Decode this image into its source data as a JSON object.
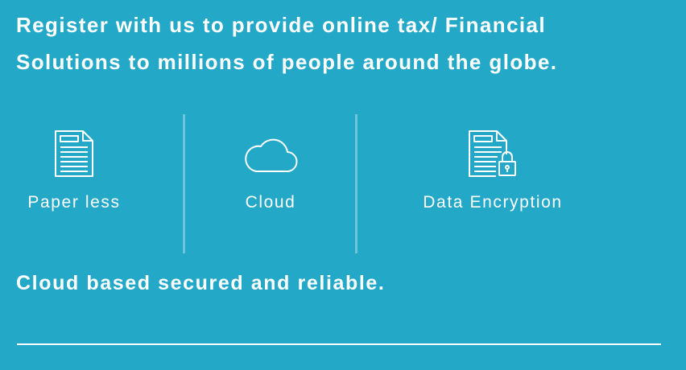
{
  "heading": {
    "line1": "Register with us to provide online tax/ Financial",
    "line2": "Solutions to millions of people around the globe."
  },
  "features": [
    {
      "label": "Paper less",
      "icon": "document-icon"
    },
    {
      "label": "Cloud",
      "icon": "cloud-icon"
    },
    {
      "label": "Data Encryption",
      "icon": "encrypted-document-icon"
    }
  ],
  "tagline": "Cloud based secured and reliable.",
  "colors": {
    "background": "#23a8c8",
    "text": "#ffffff"
  }
}
